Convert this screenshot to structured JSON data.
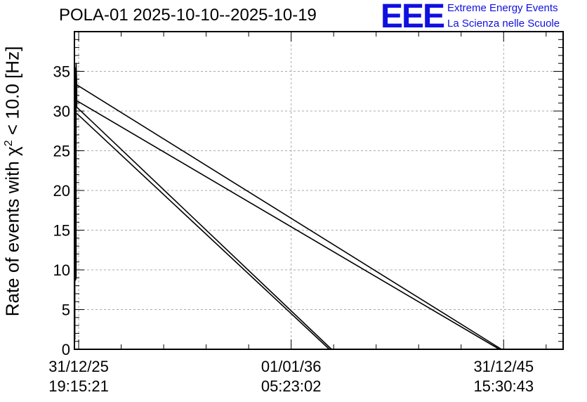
{
  "chart_data": {
    "type": "line",
    "title": "POLA-01 2025-10-10--2025-10-19",
    "ylabel_prefix": "Rate of events with χ",
    "ylabel_sup": "2",
    "ylabel_suffix": " < 10.0 [Hz]",
    "xlabel": "",
    "ylim": [
      0,
      40
    ],
    "yticks": [
      0,
      5,
      10,
      15,
      20,
      25,
      30,
      35
    ],
    "xlim": [
      -0.2,
      22.8
    ],
    "xticks": [
      {
        "value": 0,
        "line1": "31/12/25",
        "line2": "19:15:21"
      },
      {
        "value": 10,
        "line1": "01/01/36",
        "line2": "05:23:02"
      },
      {
        "value": 20,
        "line1": "31/12/45",
        "line2": "15:30:43"
      }
    ],
    "grid": true,
    "series": [
      {
        "x": [
          -0.18,
          -0.18,
          -0.15,
          -0.15,
          -0.12,
          -0.12,
          -0.09,
          -0.09
        ],
        "y": [
          1.2,
          35.5,
          34.8,
          8.7,
          9.0,
          36.0,
          33.3,
          30.5
        ]
      },
      {
        "x": [
          -0.09,
          19.9
        ],
        "y": [
          33.3,
          0
        ]
      },
      {
        "x": [
          -0.09,
          19.8
        ],
        "y": [
          31.3,
          0
        ]
      },
      {
        "x": [
          -0.09,
          11.9
        ],
        "y": [
          30.5,
          0
        ]
      },
      {
        "x": [
          -0.09,
          11.8
        ],
        "y": [
          29.7,
          0
        ]
      }
    ]
  },
  "logo": {
    "mark": "EEE",
    "line1": "Extreme Energy Events",
    "line2": "La Scienza nelle Scuole"
  }
}
